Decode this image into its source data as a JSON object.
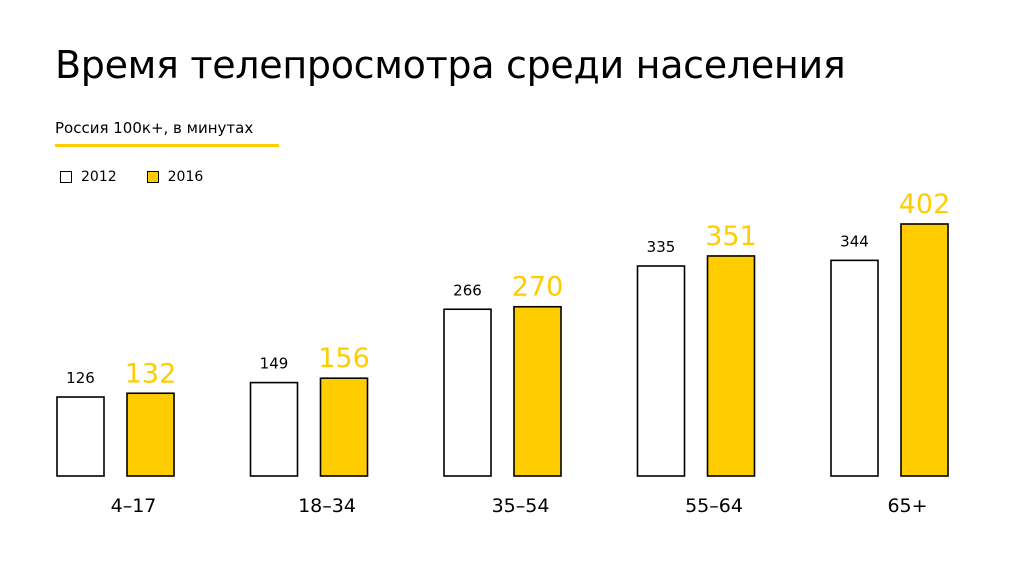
{
  "title": "Время телепросмотра среди населения",
  "subtitle": "Россия 100к+, в минутах",
  "colors": {
    "accent": "#ffcc00",
    "series_2012_fill": "#ffffff",
    "series_2016_fill": "#ffcc00",
    "stroke": "#000000"
  },
  "legend": {
    "items": [
      {
        "label": "2012",
        "color": "#ffffff"
      },
      {
        "label": "2016",
        "color": "#ffcc00"
      }
    ]
  },
  "chart_data": {
    "type": "bar",
    "title": "Время телепросмотра среди населения",
    "subtitle": "Россия 100к+, в минутах",
    "xlabel": "",
    "ylabel": "",
    "categories": [
      "4–17",
      "18–34",
      "35–54",
      "55–64",
      "65+"
    ],
    "series": [
      {
        "name": "2012",
        "values": [
          126,
          149,
          266,
          335,
          344
        ]
      },
      {
        "name": "2016",
        "values": [
          132,
          156,
          270,
          351,
          402
        ]
      }
    ],
    "ylim": [
      0,
      402
    ],
    "grid": false,
    "legend_position": "top-left",
    "data_labels": true
  }
}
